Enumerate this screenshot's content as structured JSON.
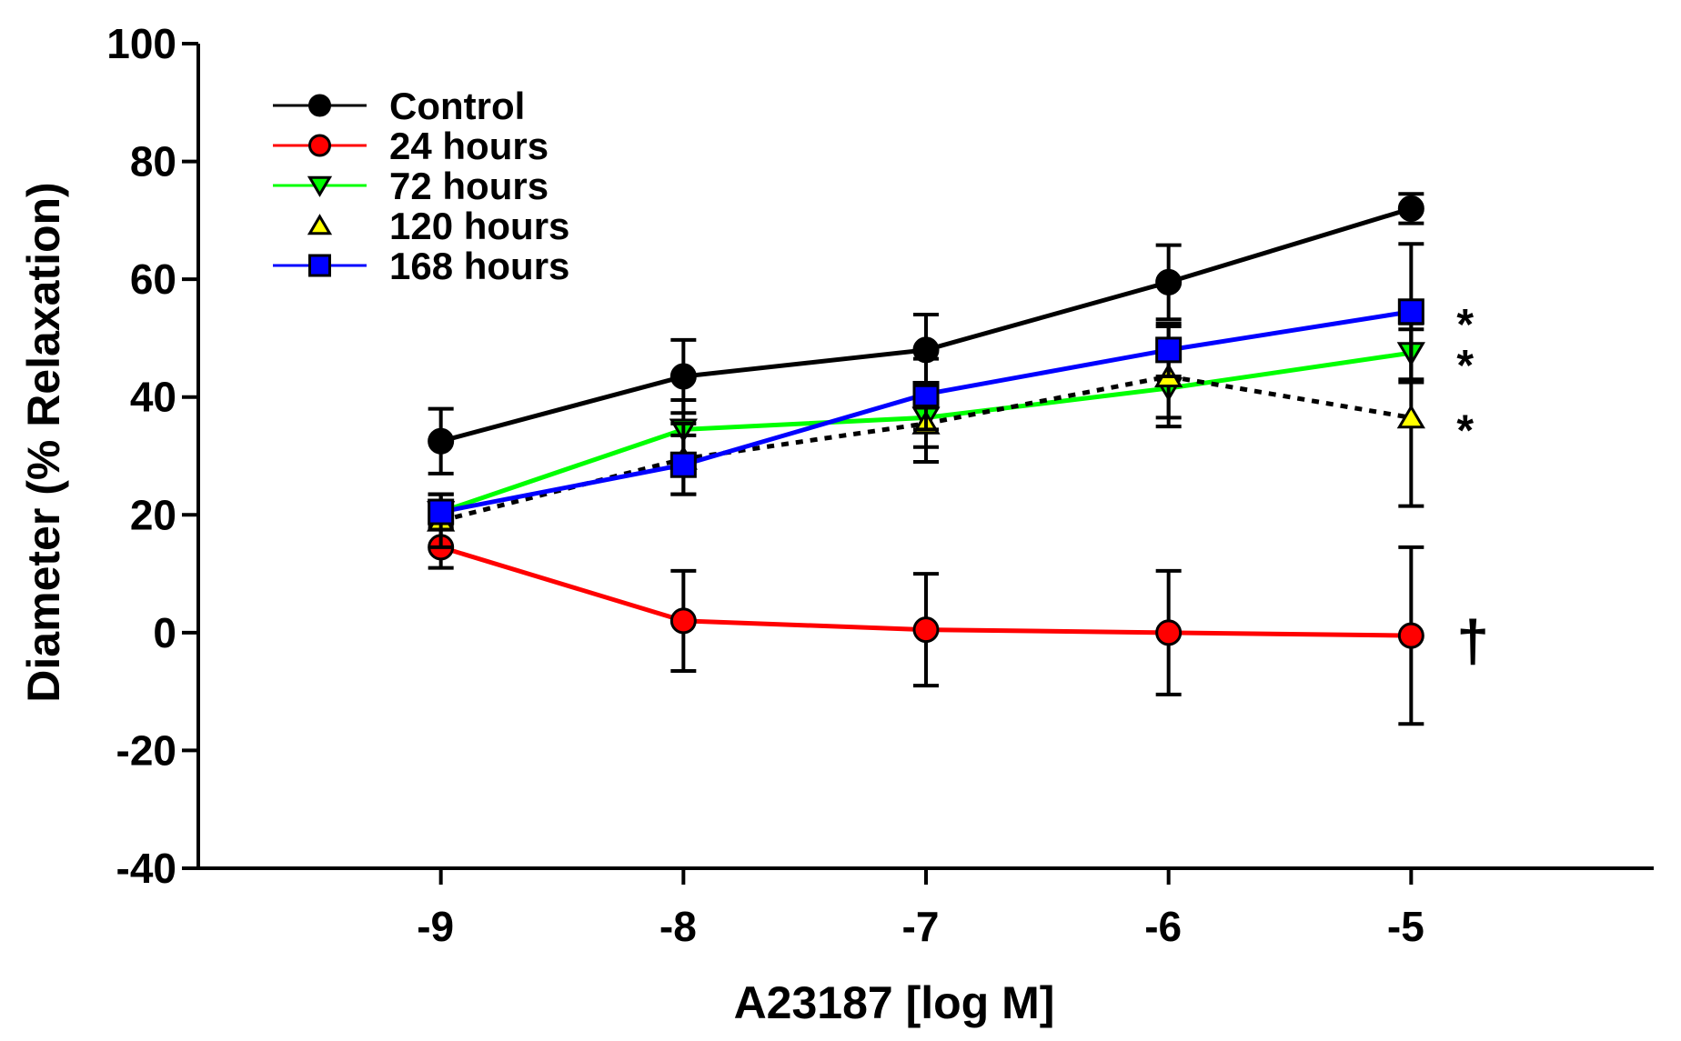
{
  "chart_data": {
    "type": "line",
    "title": "",
    "xlabel": "A23187 [log M]",
    "ylabel": "Diameter (% Relaxation)",
    "x": [
      -9,
      -8,
      -7,
      -6,
      -5
    ],
    "xlim": [
      -10,
      -4
    ],
    "ylim": [
      -40,
      100
    ],
    "xticks": [
      "-9",
      "-8",
      "-7",
      "-6",
      "-5"
    ],
    "yticks": [
      "100",
      "80",
      "60",
      "40",
      "20",
      "0",
      "-20",
      "-40"
    ],
    "grid": false,
    "legend_position": "top-left",
    "series": [
      {
        "name": "Control",
        "color": "#000000",
        "marker": "circle",
        "line": "solid",
        "values": [
          32.5,
          43.5,
          48,
          59.5,
          72
        ],
        "errors": [
          5.5,
          6.2,
          6,
          6.3,
          2.5
        ]
      },
      {
        "name": "24 hours",
        "color": "#ff0000",
        "marker": "circle",
        "line": "solid",
        "values": [
          14.5,
          2,
          0.5,
          0,
          -0.5
        ],
        "errors": [
          3.5,
          8.5,
          9.5,
          10.5,
          15
        ]
      },
      {
        "name": "72 hours",
        "color": "#00ff00",
        "marker": "triangle-down",
        "line": "solid",
        "values": [
          20.5,
          34.5,
          36.5,
          41.5,
          47.5
        ],
        "errors": [
          3,
          5,
          5,
          5,
          5
        ]
      },
      {
        "name": "120 hours",
        "color": "#ffff00",
        "marker": "triangle-up",
        "line": "dotted",
        "values": [
          19,
          29.5,
          35.5,
          43.5,
          36.5
        ],
        "errors": [
          4.5,
          6,
          6.5,
          8.5,
          15
        ]
      },
      {
        "name": "168 hours",
        "color": "#0000ff",
        "marker": "square",
        "line": "solid",
        "values": [
          20.5,
          28.5,
          40.5,
          48,
          54.5
        ],
        "errors": [
          3,
          5,
          6,
          4.5,
          11.5
        ]
      }
    ],
    "annotations": [
      {
        "text": "*",
        "series": "168 hours"
      },
      {
        "text": "*",
        "series": "72 hours"
      },
      {
        "text": "*",
        "series": "120 hours"
      },
      {
        "text": "†",
        "series": "24 hours"
      }
    ]
  }
}
